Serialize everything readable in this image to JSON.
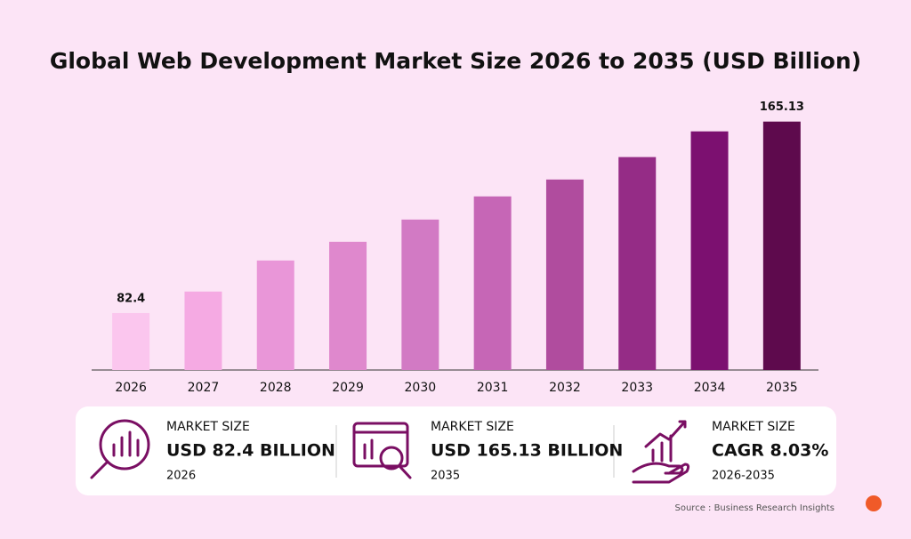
{
  "chart_data": {
    "type": "bar",
    "title": "Global Web Development Market Size 2026 to 2035 (USD Billion)",
    "categories": [
      "2026",
      "2027",
      "2028",
      "2029",
      "2030",
      "2031",
      "2032",
      "2033",
      "2034",
      "2035"
    ],
    "values": [
      82.4,
      91.7,
      105.1,
      113.2,
      122.8,
      132.8,
      140.1,
      149.8,
      160.9,
      165.13
    ],
    "colors": [
      "#fbc6ee",
      "#f5aae3",
      "#e996d8",
      "#df88cd",
      "#d27ac4",
      "#c666b6",
      "#b04c9e",
      "#952c86",
      "#7c1070",
      "#5e0a4d"
    ],
    "ylim": [
      57.8,
      180
    ]
  },
  "stats": [
    {
      "label": "MARKET SIZE",
      "value": "USD 82.4 BILLION",
      "period": "2026"
    },
    {
      "label": "MARKET SIZE",
      "value": "USD 165.13 BILLION",
      "period": "2035"
    },
    {
      "label": "MARKET SIZE",
      "value": "CAGR 8.03%",
      "period": "2026-2035"
    }
  ],
  "source": "Source : Business Research Insights"
}
